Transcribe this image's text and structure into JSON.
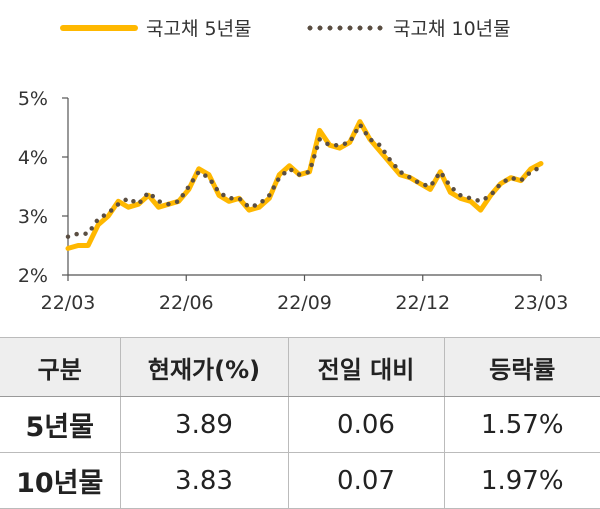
{
  "legend": {
    "series1": "국고채 5년물",
    "series2": "국고채 10년물"
  },
  "colors": {
    "series1": "#FFB800",
    "series2": "#5a4e42",
    "axis": "#555555"
  },
  "chart_data": {
    "type": "line",
    "ylim": [
      2,
      5
    ],
    "yticks": [
      {
        "value": 5,
        "label": "5%"
      },
      {
        "value": 4,
        "label": "4%"
      },
      {
        "value": 3,
        "label": "3%"
      },
      {
        "value": 2,
        "label": "2%"
      }
    ],
    "xticks": [
      "22/03",
      "22/06",
      "22/09",
      "22/12",
      "23/03"
    ],
    "x": [
      "22/03",
      "22/03",
      "22/04",
      "22/04",
      "22/04",
      "22/04",
      "22/05",
      "22/05",
      "22/05",
      "22/05",
      "22/06",
      "22/06",
      "22/06",
      "22/06",
      "22/07",
      "22/07",
      "22/07",
      "22/07",
      "22/08",
      "22/08",
      "22/08",
      "22/08",
      "22/09",
      "22/09",
      "22/09",
      "22/09",
      "22/10",
      "22/10",
      "22/10",
      "22/10",
      "22/11",
      "22/11",
      "22/11",
      "22/11",
      "22/12",
      "22/12",
      "22/12",
      "22/12",
      "23/01",
      "23/01",
      "23/01",
      "23/01",
      "23/02",
      "23/02",
      "23/02",
      "23/02",
      "23/03",
      "23/03"
    ],
    "series": [
      {
        "name": "국고채 5년물",
        "style": "solid",
        "values": [
          2.45,
          2.5,
          2.5,
          2.85,
          3.0,
          3.25,
          3.15,
          3.2,
          3.35,
          3.15,
          3.2,
          3.25,
          3.45,
          3.8,
          3.7,
          3.35,
          3.25,
          3.3,
          3.1,
          3.15,
          3.3,
          3.7,
          3.85,
          3.7,
          3.75,
          4.45,
          4.2,
          4.15,
          4.25,
          4.6,
          4.3,
          4.1,
          3.9,
          3.7,
          3.65,
          3.55,
          3.45,
          3.75,
          3.4,
          3.3,
          3.25,
          3.1,
          3.35,
          3.55,
          3.65,
          3.6,
          3.8,
          3.89
        ]
      },
      {
        "name": "국고채 10년물",
        "style": "dotted",
        "values": [
          2.65,
          2.7,
          2.7,
          2.95,
          3.05,
          3.2,
          3.3,
          3.2,
          3.4,
          3.25,
          3.2,
          3.25,
          3.5,
          3.75,
          3.65,
          3.4,
          3.3,
          3.3,
          3.15,
          3.2,
          3.35,
          3.65,
          3.8,
          3.7,
          3.75,
          4.3,
          4.2,
          4.2,
          4.25,
          4.55,
          4.3,
          4.2,
          3.95,
          3.75,
          3.65,
          3.55,
          3.5,
          3.75,
          3.5,
          3.35,
          3.3,
          3.25,
          3.35,
          3.55,
          3.65,
          3.6,
          3.75,
          3.83
        ]
      }
    ]
  },
  "table": {
    "headers": [
      "구분",
      "현재가(%)",
      "전일 대비",
      "등락률"
    ],
    "rows": [
      [
        "5년물",
        "3.89",
        "0.06",
        "1.57%"
      ],
      [
        "10년물",
        "3.83",
        "0.07",
        "1.97%"
      ]
    ]
  }
}
